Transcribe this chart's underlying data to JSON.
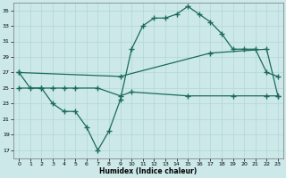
{
  "xlabel": "Humidex (Indice chaleur)",
  "bg_color": "#cce8e8",
  "line_color": "#1a6b5a",
  "grid_color": "#b0d8d8",
  "xlim": [
    -0.5,
    23.5
  ],
  "ylim": [
    16,
    36
  ],
  "yticks": [
    17,
    19,
    21,
    23,
    25,
    27,
    29,
    31,
    33,
    35
  ],
  "xticks": [
    0,
    1,
    2,
    3,
    4,
    5,
    6,
    7,
    8,
    9,
    10,
    11,
    12,
    13,
    14,
    15,
    16,
    17,
    18,
    19,
    20,
    21,
    22,
    23
  ],
  "curve1_x": [
    0,
    1,
    2,
    3,
    4,
    5,
    6,
    7,
    8,
    9,
    10,
    11,
    12,
    13,
    14,
    15,
    16,
    17,
    18,
    19,
    20,
    21,
    22,
    23
  ],
  "curve1_y": [
    27,
    25,
    25,
    23,
    22,
    22,
    20,
    17,
    19.5,
    23.5,
    30,
    33,
    34,
    34,
    34.5,
    35.5,
    34.5,
    33.5,
    32,
    30,
    30,
    30,
    27,
    26.5
  ],
  "curve2_x": [
    0,
    9,
    17,
    22,
    23
  ],
  "curve2_y": [
    27,
    26.5,
    29.5,
    30,
    24
  ],
  "curve3_x": [
    0,
    2,
    3,
    4,
    5,
    7,
    9,
    10,
    15,
    19,
    22,
    23
  ],
  "curve3_y": [
    25,
    25,
    25,
    25,
    25,
    25,
    24,
    24.5,
    24,
    24,
    24,
    24
  ]
}
